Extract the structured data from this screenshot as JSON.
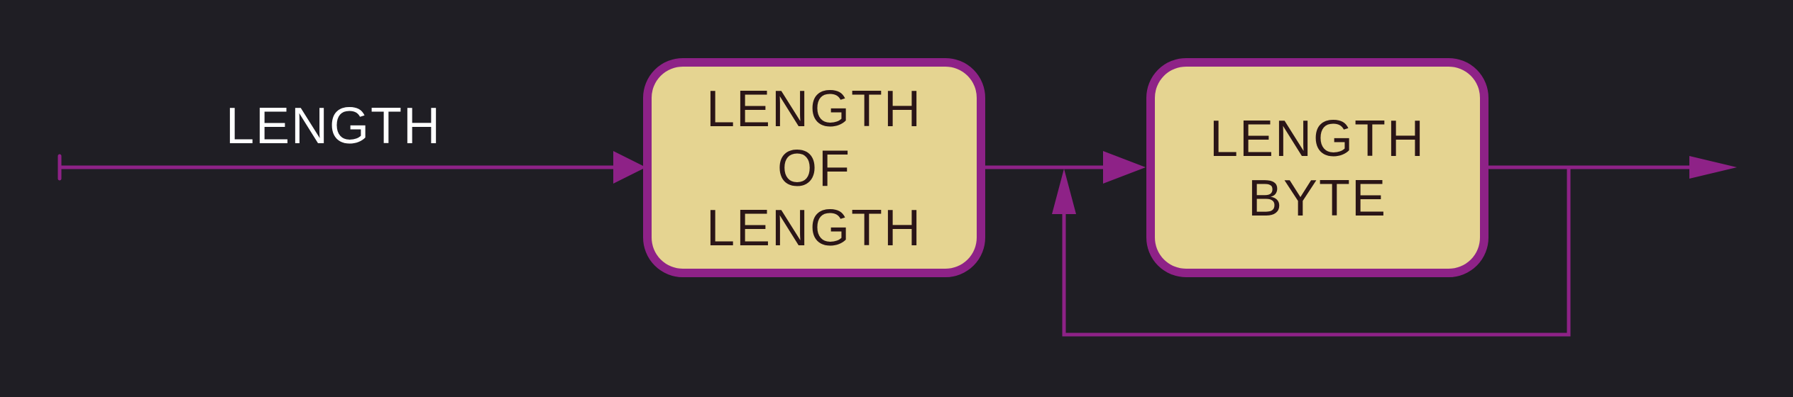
{
  "diagram": {
    "edge_label": "LENGTH",
    "nodes": [
      {
        "id": "length-of-length",
        "lines": [
          "LENGTH",
          "OF",
          "LENGTH"
        ]
      },
      {
        "id": "length-byte",
        "lines": [
          "LENGTH",
          "BYTE"
        ]
      }
    ],
    "colors": {
      "background": "#1f1e24",
      "edge": "#8e2287",
      "node_fill": "#e5d491",
      "node_border": "#8e2287",
      "node_text": "#2a1517",
      "label_text": "#ffffff"
    }
  }
}
